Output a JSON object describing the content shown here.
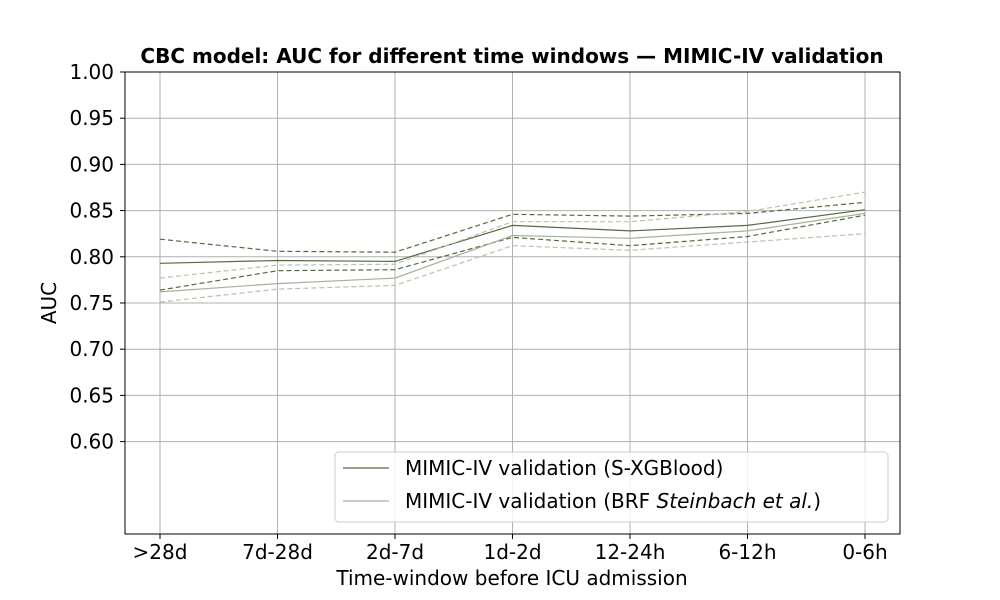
{
  "chart_data": {
    "type": "line",
    "title": "CBC model: AUC for different time windows — MIMIC-IV validation",
    "xlabel": "Time-window before ICU admission",
    "ylabel": "AUC",
    "categories": [
      ">28d",
      "7d-28d",
      "2d-7d",
      "1d-2d",
      "12-24h",
      "6-12h",
      "0-6h"
    ],
    "ylim": [
      0.5,
      1.0
    ],
    "yticks": [
      "0.60",
      "0.65",
      "0.70",
      "0.75",
      "0.80",
      "0.85",
      "0.90",
      "0.95",
      "1.00"
    ],
    "grid": true,
    "legend_position": "lower right",
    "series": [
      {
        "name": "MIMIC-IV validation  (S-XGBlood)",
        "color": "#556b3f",
        "style": "solid",
        "values": [
          0.793,
          0.796,
          0.795,
          0.834,
          0.828,
          0.834,
          0.851
        ]
      },
      {
        "color": "#556b3f",
        "style": "dashed",
        "values": [
          0.819,
          0.806,
          0.805,
          0.846,
          0.844,
          0.847,
          0.859
        ]
      },
      {
        "color": "#556b3f",
        "style": "dashed",
        "values": [
          0.764,
          0.785,
          0.786,
          0.821,
          0.812,
          0.822,
          0.845
        ]
      },
      {
        "name": "MIMIC-IV validation  (BRF Steinbach et al.)",
        "color": "#a6b29a",
        "style": "solid",
        "values": [
          0.762,
          0.771,
          0.777,
          0.823,
          0.82,
          0.828,
          0.847
        ]
      },
      {
        "color": "#b9c2b0",
        "style": "dashed",
        "values": [
          0.777,
          0.791,
          0.792,
          0.838,
          0.838,
          0.849,
          0.87
        ]
      },
      {
        "color": "#b9c2b0",
        "style": "dashed",
        "values": [
          0.751,
          0.765,
          0.769,
          0.812,
          0.807,
          0.816,
          0.825
        ]
      }
    ],
    "legend": {
      "entry1": "MIMIC-IV validation  (S-XGBlood)",
      "entry2_prefix": "MIMIC-IV validation  (BRF ",
      "entry2_italic": "Steinbach et al.",
      "entry2_suffix": ")"
    }
  }
}
